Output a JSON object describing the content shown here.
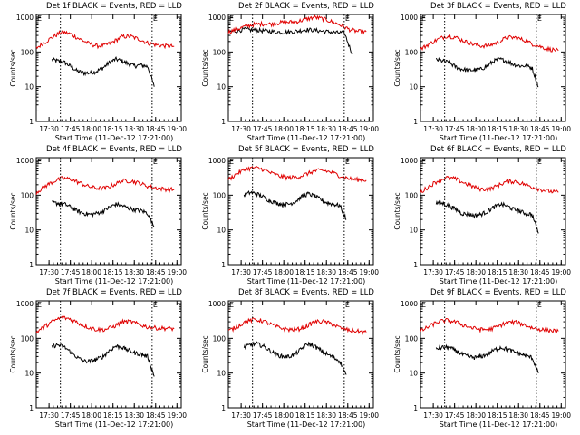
{
  "panel_defaults": {
    "ylabel": "Counts/sec",
    "xlabel": "Start Time (11-Dec-12 17:21:00)",
    "x_ticklabels": [
      "17:30",
      "17:45",
      "18:00",
      "18:15",
      "18:30",
      "18:45",
      "19:00"
    ],
    "y_ticklabels": [
      "1",
      "10",
      "100",
      "1000"
    ],
    "marker_label": "E"
  },
  "chart_data": [
    {
      "type": "line",
      "title": "Det 1f BLACK = Events, RED = LLD",
      "yscale": "log",
      "ylim": [
        1,
        1200
      ],
      "xlim": [
        "17:21:00",
        "19:03:00"
      ],
      "markers": [
        "17:38:00",
        "18:42:30"
      ],
      "series": [
        {
          "name": "Events",
          "color": "#000000",
          "start": "17:32:00",
          "end": "18:44:00",
          "values": [
            60,
            55,
            50,
            38,
            28,
            25,
            25,
            28,
            35,
            50,
            62,
            55,
            45,
            40,
            42,
            38,
            10
          ]
        },
        {
          "name": "LLD",
          "color": "#e00000",
          "start": "17:21:00",
          "end": "18:58:00",
          "values": [
            130,
            190,
            280,
            380,
            330,
            240,
            180,
            150,
            155,
            200,
            280,
            280,
            230,
            180,
            160,
            150,
            145
          ]
        }
      ]
    },
    {
      "type": "line",
      "title": "Det 2f BLACK = Events, RED = LLD",
      "yscale": "log",
      "ylim": [
        1,
        1200
      ],
      "xlim": [
        "17:21:00",
        "19:03:00"
      ],
      "markers": [
        "17:38:00",
        "18:42:30"
      ],
      "series": [
        {
          "name": "Events",
          "color": "#000000",
          "start": "17:21:00",
          "end": "18:48:00",
          "values": [
            380,
            400,
            450,
            430,
            420,
            400,
            380,
            370,
            380,
            400,
            440,
            430,
            400,
            380,
            360,
            360,
            90
          ]
        },
        {
          "name": "LLD",
          "color": "#e00000",
          "start": "17:21:00",
          "end": "18:58:00",
          "values": [
            380,
            450,
            550,
            620,
            650,
            640,
            700,
            720,
            750,
            880,
            1000,
            900,
            750,
            600,
            450,
            390,
            380
          ]
        }
      ]
    },
    {
      "type": "line",
      "title": "Det 3f BLACK = Events, RED = LLD",
      "yscale": "log",
      "ylim": [
        1,
        1200
      ],
      "xlim": [
        "17:21:00",
        "19:03:00"
      ],
      "markers": [
        "17:38:00",
        "18:42:30"
      ],
      "series": [
        {
          "name": "Events",
          "color": "#000000",
          "start": "17:32:00",
          "end": "18:44:00",
          "values": [
            60,
            55,
            50,
            38,
            32,
            30,
            30,
            32,
            40,
            55,
            62,
            55,
            45,
            40,
            40,
            35,
            10
          ]
        },
        {
          "name": "LLD",
          "color": "#e00000",
          "start": "17:21:00",
          "end": "18:58:00",
          "values": [
            120,
            170,
            230,
            290,
            270,
            210,
            170,
            150,
            155,
            190,
            260,
            260,
            220,
            170,
            140,
            120,
            110
          ]
        }
      ]
    },
    {
      "type": "line",
      "title": "Det 4f BLACK = Events, RED = LLD",
      "yscale": "log",
      "ylim": [
        1,
        1200
      ],
      "xlim": [
        "17:21:00",
        "19:03:00"
      ],
      "markers": [
        "17:38:00",
        "18:42:30"
      ],
      "series": [
        {
          "name": "Events",
          "color": "#000000",
          "start": "17:32:00",
          "end": "18:44:00",
          "values": [
            60,
            58,
            55,
            45,
            35,
            30,
            28,
            30,
            35,
            45,
            55,
            50,
            42,
            38,
            36,
            30,
            12
          ]
        },
        {
          "name": "LLD",
          "color": "#e00000",
          "start": "17:21:00",
          "end": "18:58:00",
          "values": [
            120,
            180,
            250,
            310,
            290,
            230,
            180,
            160,
            160,
            200,
            260,
            260,
            220,
            180,
            160,
            150,
            145
          ]
        }
      ]
    },
    {
      "type": "line",
      "title": "Det 5f BLACK = Events, RED = LLD",
      "yscale": "log",
      "ylim": [
        1,
        1200
      ],
      "xlim": [
        "17:21:00",
        "19:03:00"
      ],
      "markers": [
        "17:38:00",
        "18:42:30"
      ],
      "series": [
        {
          "name": "Events",
          "color": "#000000",
          "start": "17:32:00",
          "end": "18:44:00",
          "values": [
            100,
            120,
            110,
            90,
            70,
            60,
            55,
            55,
            65,
            90,
            110,
            95,
            75,
            60,
            55,
            50,
            20
          ]
        },
        {
          "name": "LLD",
          "color": "#e00000",
          "start": "17:21:00",
          "end": "18:58:00",
          "values": [
            280,
            420,
            560,
            620,
            560,
            430,
            350,
            320,
            330,
            400,
            500,
            520,
            450,
            360,
            300,
            280,
            270
          ]
        }
      ]
    },
    {
      "type": "line",
      "title": "Det 6f BLACK = Events, RED = LLD",
      "yscale": "log",
      "ylim": [
        1,
        1200
      ],
      "xlim": [
        "17:21:00",
        "19:03:00"
      ],
      "markers": [
        "17:38:00",
        "18:42:30"
      ],
      "series": [
        {
          "name": "Events",
          "color": "#000000",
          "start": "17:32:00",
          "end": "18:44:00",
          "values": [
            60,
            58,
            50,
            40,
            30,
            28,
            26,
            28,
            34,
            45,
            55,
            50,
            40,
            35,
            30,
            28,
            8
          ]
        },
        {
          "name": "LLD",
          "color": "#e00000",
          "start": "17:21:00",
          "end": "18:58:00",
          "values": [
            120,
            180,
            260,
            320,
            300,
            230,
            180,
            150,
            150,
            190,
            250,
            250,
            210,
            170,
            145,
            130,
            120
          ]
        }
      ]
    },
    {
      "type": "line",
      "title": "Det 7f BLACK = Events, RED = LLD",
      "yscale": "log",
      "ylim": [
        1,
        1200
      ],
      "xlim": [
        "17:21:00",
        "19:03:00"
      ],
      "markers": [
        "17:38:00",
        "18:42:30"
      ],
      "series": [
        {
          "name": "Events",
          "color": "#000000",
          "start": "17:32:00",
          "end": "18:44:00",
          "values": [
            60,
            65,
            55,
            40,
            28,
            22,
            22,
            25,
            30,
            45,
            60,
            55,
            45,
            38,
            35,
            30,
            8
          ]
        },
        {
          "name": "LLD",
          "color": "#e00000",
          "start": "17:21:00",
          "end": "18:58:00",
          "values": [
            150,
            220,
            320,
            400,
            360,
            270,
            210,
            180,
            180,
            220,
            300,
            300,
            250,
            210,
            200,
            195,
            190
          ]
        }
      ]
    },
    {
      "type": "line",
      "title": "Det 8f BLACK = Events, RED = LLD",
      "yscale": "log",
      "ylim": [
        1,
        1200
      ],
      "xlim": [
        "17:21:00",
        "19:03:00"
      ],
      "markers": [
        "17:38:00",
        "18:42:30"
      ],
      "series": [
        {
          "name": "Events",
          "color": "#000000",
          "start": "17:32:00",
          "end": "18:44:00",
          "values": [
            55,
            65,
            70,
            60,
            45,
            35,
            30,
            30,
            35,
            50,
            70,
            60,
            45,
            35,
            28,
            22,
            9
          ]
        },
        {
          "name": "LLD",
          "color": "#e00000",
          "start": "17:21:00",
          "end": "18:58:00",
          "values": [
            160,
            220,
            300,
            350,
            320,
            250,
            200,
            180,
            180,
            220,
            300,
            310,
            260,
            200,
            170,
            160,
            150
          ]
        }
      ]
    },
    {
      "type": "line",
      "title": "Det 9f BLACK = Events, RED = LLD",
      "yscale": "log",
      "ylim": [
        1,
        1200
      ],
      "xlim": [
        "17:21:00",
        "19:03:00"
      ],
      "markers": [
        "17:38:00",
        "18:42:30"
      ],
      "series": [
        {
          "name": "Events",
          "color": "#000000",
          "start": "17:32:00",
          "end": "18:44:00",
          "values": [
            50,
            55,
            55,
            45,
            35,
            30,
            28,
            30,
            35,
            45,
            55,
            50,
            42,
            36,
            32,
            28,
            10
          ]
        },
        {
          "name": "LLD",
          "color": "#e00000",
          "start": "17:21:00",
          "end": "18:58:00",
          "values": [
            160,
            220,
            300,
            330,
            300,
            240,
            200,
            180,
            180,
            220,
            290,
            290,
            250,
            200,
            180,
            170,
            160
          ]
        }
      ]
    }
  ]
}
